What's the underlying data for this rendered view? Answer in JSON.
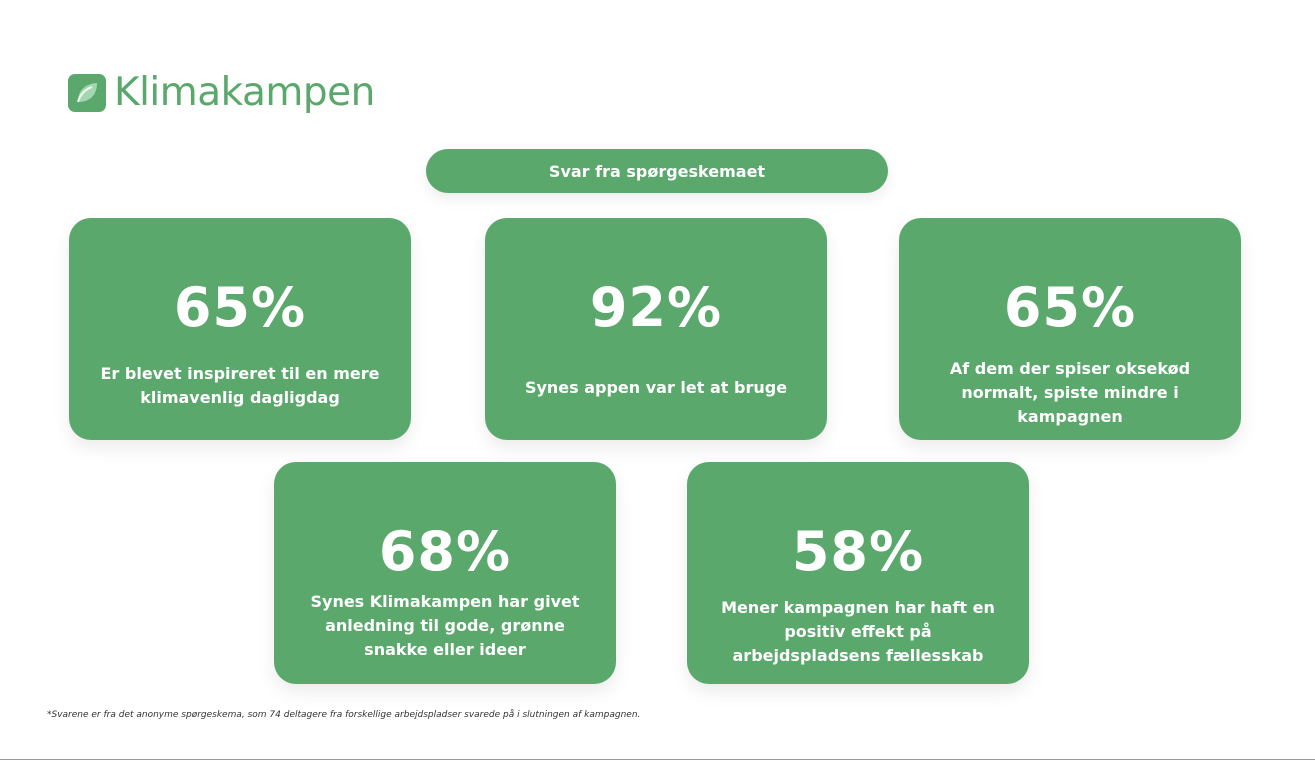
{
  "brand": {
    "name": "Klimakampen",
    "icon": "leaf-logo-icon",
    "color": "#5aa86c"
  },
  "header": {
    "label": "Svar fra spørgeskemaet"
  },
  "cards": [
    {
      "percent": "65%",
      "text": "Er blevet inspireret til en mere klimavenlig dagligdag"
    },
    {
      "percent": "92%",
      "text": "Synes appen var let at bruge"
    },
    {
      "percent": "65%",
      "text": "Af dem der spiser oksekød normalt, spiste mindre i kampagnen"
    },
    {
      "percent": "68%",
      "text": "Synes Klimakampen har givet anledning til gode, grønne snakke eller ideer"
    },
    {
      "percent": "58%",
      "text": "Mener kampagnen har haft en positiv effekt på arbejdspladsens fællesskab"
    }
  ],
  "footnote": "*Svarene er fra det anonyme spørgeskema, som 74 deltagere fra forskellige arbejdspladser svarede på i slutningen af kampagnen."
}
